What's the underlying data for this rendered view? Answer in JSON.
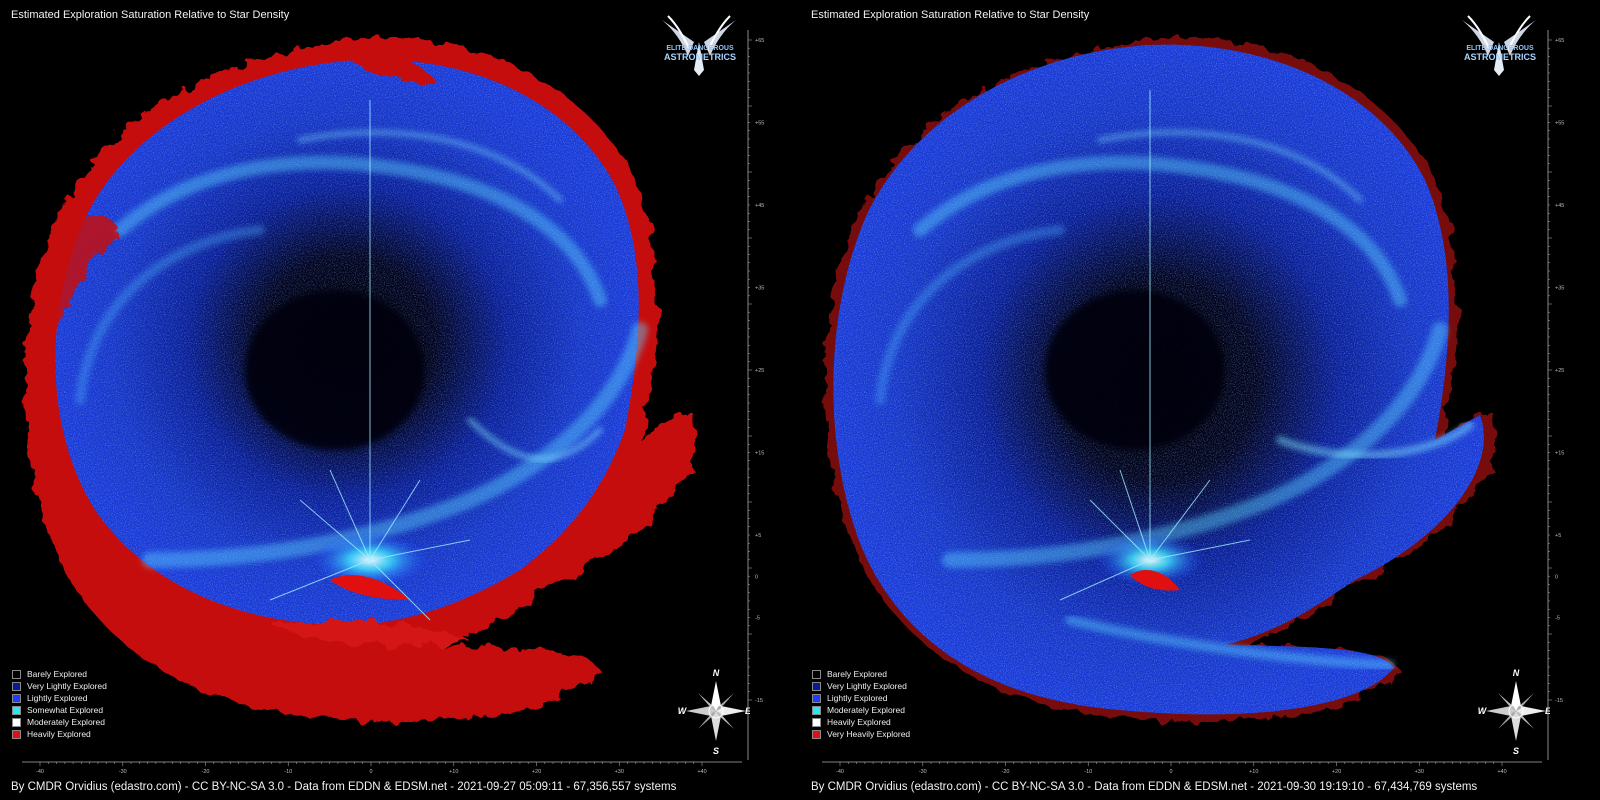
{
  "panels": [
    {
      "id": "left",
      "title": "Estimated Exploration Saturation Relative to Star Density",
      "logo": {
        "line1": "ELITE DANGEROUS",
        "line2": "ASTROMETRICS"
      },
      "legend": [
        {
          "label": "Barely Explored",
          "color": "#000000"
        },
        {
          "label": "Very Lightly Explored",
          "color": "#0a1a8c"
        },
        {
          "label": "Lightly Explored",
          "color": "#1f3cff"
        },
        {
          "label": "Somewhat Explored",
          "color": "#25e8f0"
        },
        {
          "label": "Moderately Explored",
          "color": "#ffffff"
        },
        {
          "label": "Heavily Explored",
          "color": "#e01010"
        }
      ],
      "compass": {
        "n": "N",
        "s": "S",
        "e": "E",
        "w": "W"
      },
      "footer": "By CMDR Orvidius (edastro.com) - CC BY-NC-SA 3.0 - Data from EDDN & EDSM.net - 2021-09-27 05:09:11 - 67,356,557 systems",
      "x_ticks": [
        "-40",
        "-30",
        "-20",
        "-10",
        "0",
        "+10",
        "+20",
        "+30",
        "+40"
      ],
      "y_ticks": [
        "+65",
        "+55",
        "+45",
        "+35",
        "+25",
        "+15",
        "+5",
        "0",
        "-5",
        "-15"
      ]
    },
    {
      "id": "right",
      "title": "Estimated Exploration Saturation Relative to Star Density",
      "logo": {
        "line1": "ELITE DANGEROUS",
        "line2": "ASTROMETRICS"
      },
      "legend": [
        {
          "label": "Barely Explored",
          "color": "#000000"
        },
        {
          "label": "Very Lightly Explored",
          "color": "#0a1a8c"
        },
        {
          "label": "Lightly Explored",
          "color": "#1f3cff"
        },
        {
          "label": "Moderately Explored",
          "color": "#25e8f0"
        },
        {
          "label": "Heavily Explored",
          "color": "#ffffff"
        },
        {
          "label": "Very Heavily Explored",
          "color": "#e01010"
        }
      ],
      "compass": {
        "n": "N",
        "s": "S",
        "e": "E",
        "w": "W"
      },
      "footer": "By CMDR Orvidius (edastro.com) - CC BY-NC-SA 3.0 - Data from EDDN & EDSM.net - 2021-09-30 19:19:10 - 67,434,769 systems",
      "x_ticks": [
        "-40",
        "-30",
        "-20",
        "-10",
        "0",
        "+10",
        "+20",
        "+30",
        "+40"
      ],
      "y_ticks": [
        "+65",
        "+55",
        "+45",
        "+35",
        "+25",
        "+15",
        "+5",
        "0",
        "-5",
        "-15"
      ]
    }
  ]
}
